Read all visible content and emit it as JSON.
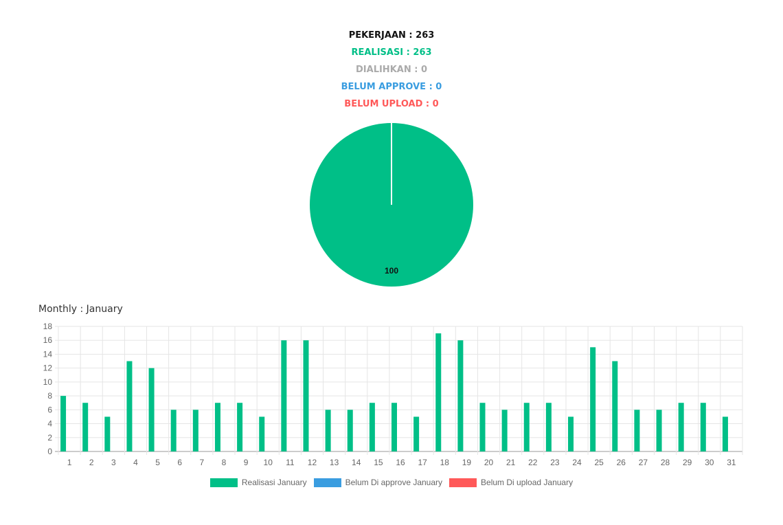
{
  "summary": {
    "items": [
      {
        "label": "PEKERJAAN : 263",
        "color": "#111111"
      },
      {
        "label": "REALISASI : 263",
        "color": "#00bf87"
      },
      {
        "label": "DIALIHKAN : 0",
        "color": "#aaaaaa"
      },
      {
        "label": "BELUM APPROVE : 0",
        "color": "#3a9de0"
      },
      {
        "label": "BELUM UPLOAD : 0",
        "color": "#ff5959"
      }
    ]
  },
  "monthly": {
    "title": "Monthly : January"
  },
  "chart_data": [
    {
      "type": "pie",
      "values": [
        100,
        0,
        0,
        0
      ],
      "colors": [
        "#00bf87",
        "#aaaaaa",
        "#3a9de0",
        "#ff5959"
      ],
      "data_labels": [
        "100"
      ]
    },
    {
      "type": "bar",
      "categories": [
        "1",
        "2",
        "3",
        "4",
        "5",
        "6",
        "7",
        "8",
        "9",
        "10",
        "11",
        "12",
        "13",
        "14",
        "15",
        "16",
        "17",
        "18",
        "19",
        "20",
        "21",
        "22",
        "23",
        "24",
        "25",
        "26",
        "27",
        "28",
        "29",
        "30",
        "31"
      ],
      "series": [
        {
          "name": "Realisasi January",
          "color": "#00bf87",
          "values": [
            8,
            7,
            5,
            13,
            12,
            6,
            6,
            7,
            7,
            5,
            16,
            16,
            6,
            6,
            7,
            7,
            5,
            17,
            16,
            7,
            6,
            7,
            7,
            5,
            15,
            13,
            6,
            6,
            7,
            7,
            5
          ]
        },
        {
          "name": "Belum Di approve January",
          "color": "#3a9de0",
          "values": [
            0,
            0,
            0,
            0,
            0,
            0,
            0,
            0,
            0,
            0,
            0,
            0,
            0,
            0,
            0,
            0,
            0,
            0,
            0,
            0,
            0,
            0,
            0,
            0,
            0,
            0,
            0,
            0,
            0,
            0,
            0
          ]
        },
        {
          "name": "Belum Di upload January",
          "color": "#ff5959",
          "values": [
            0,
            0,
            0,
            0,
            0,
            0,
            0,
            0,
            0,
            0,
            0,
            0,
            0,
            0,
            0,
            0,
            0,
            0,
            0,
            0,
            0,
            0,
            0,
            0,
            0,
            0,
            0,
            0,
            0,
            0,
            0
          ]
        }
      ],
      "y_ticks": [
        "0",
        "2",
        "4",
        "6",
        "8",
        "10",
        "12",
        "14",
        "16",
        "18"
      ],
      "ylim": [
        0,
        18
      ],
      "grid": true,
      "legend_position": "bottom"
    }
  ]
}
